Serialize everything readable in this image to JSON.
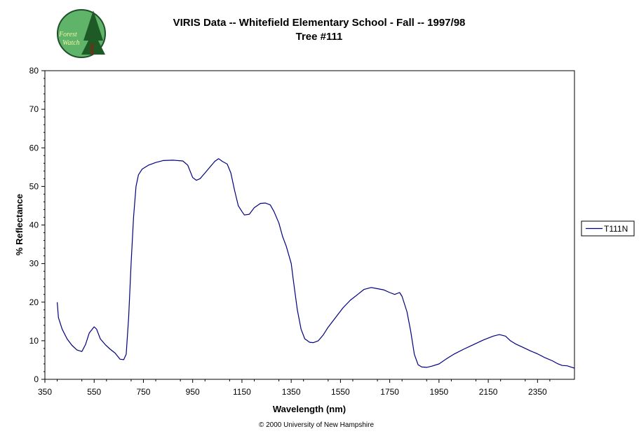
{
  "logo": {
    "name": "forest-watch-logo",
    "text": [
      "Forest",
      "Watch"
    ]
  },
  "copyright": "© 2000 University of New Hampshire",
  "chart_data": {
    "type": "line",
    "title": "VIRIS Data -- Whitefield Elementary School - Fall -- 1997/98",
    "subtitle": "Tree #111",
    "xlabel": "Wavelength (nm)",
    "ylabel": "% Reflectance",
    "xlim": [
      350,
      2500
    ],
    "ylim": [
      0,
      80
    ],
    "x_ticks": [
      350,
      550,
      750,
      950,
      1150,
      1350,
      1550,
      1750,
      1950,
      2150,
      2350
    ],
    "y_ticks": [
      0,
      10,
      20,
      30,
      40,
      50,
      60,
      70,
      80
    ],
    "grid": false,
    "legend_position": "right",
    "series": [
      {
        "name": "T111N",
        "color": "#000080",
        "points": [
          [
            400,
            20
          ],
          [
            405,
            16
          ],
          [
            420,
            13
          ],
          [
            440,
            10.5
          ],
          [
            460,
            8.8
          ],
          [
            480,
            7.6
          ],
          [
            500,
            7.2
          ],
          [
            515,
            9
          ],
          [
            530,
            12
          ],
          [
            550,
            13.6
          ],
          [
            560,
            13
          ],
          [
            575,
            10.5
          ],
          [
            595,
            9
          ],
          [
            615,
            7.8
          ],
          [
            635,
            6.8
          ],
          [
            655,
            5.2
          ],
          [
            670,
            5.1
          ],
          [
            680,
            6.5
          ],
          [
            690,
            16
          ],
          [
            700,
            30
          ],
          [
            710,
            42
          ],
          [
            720,
            50
          ],
          [
            730,
            53
          ],
          [
            745,
            54.5
          ],
          [
            770,
            55.5
          ],
          [
            800,
            56.2
          ],
          [
            830,
            56.7
          ],
          [
            870,
            56.8
          ],
          [
            910,
            56.6
          ],
          [
            930,
            55.5
          ],
          [
            950,
            52.3
          ],
          [
            965,
            51.6
          ],
          [
            980,
            52
          ],
          [
            1000,
            53.5
          ],
          [
            1020,
            55
          ],
          [
            1040,
            56.5
          ],
          [
            1055,
            57.2
          ],
          [
            1070,
            56.5
          ],
          [
            1090,
            55.8
          ],
          [
            1105,
            53.5
          ],
          [
            1120,
            49
          ],
          [
            1135,
            45
          ],
          [
            1150,
            43.5
          ],
          [
            1160,
            42.6
          ],
          [
            1180,
            42.8
          ],
          [
            1200,
            44.5
          ],
          [
            1225,
            45.6
          ],
          [
            1245,
            45.7
          ],
          [
            1265,
            45.2
          ],
          [
            1280,
            43.5
          ],
          [
            1300,
            40.5
          ],
          [
            1315,
            37
          ],
          [
            1330,
            34.5
          ],
          [
            1350,
            30
          ],
          [
            1360,
            25
          ],
          [
            1375,
            18
          ],
          [
            1390,
            13
          ],
          [
            1405,
            10.5
          ],
          [
            1425,
            9.6
          ],
          [
            1440,
            9.5
          ],
          [
            1460,
            10
          ],
          [
            1480,
            11.5
          ],
          [
            1500,
            13.5
          ],
          [
            1530,
            16
          ],
          [
            1560,
            18.5
          ],
          [
            1590,
            20.5
          ],
          [
            1620,
            22
          ],
          [
            1645,
            23.3
          ],
          [
            1675,
            23.8
          ],
          [
            1700,
            23.5
          ],
          [
            1725,
            23.2
          ],
          [
            1750,
            22.5
          ],
          [
            1770,
            22
          ],
          [
            1790,
            22.5
          ],
          [
            1800,
            21.5
          ],
          [
            1820,
            17.5
          ],
          [
            1835,
            12.5
          ],
          [
            1850,
            6.5
          ],
          [
            1865,
            3.8
          ],
          [
            1880,
            3.2
          ],
          [
            1900,
            3.1
          ],
          [
            1920,
            3.4
          ],
          [
            1950,
            4
          ],
          [
            1980,
            5.3
          ],
          [
            2010,
            6.5
          ],
          [
            2050,
            7.8
          ],
          [
            2090,
            9
          ],
          [
            2130,
            10.2
          ],
          [
            2170,
            11.2
          ],
          [
            2195,
            11.6
          ],
          [
            2220,
            11.2
          ],
          [
            2240,
            10
          ],
          [
            2260,
            9.2
          ],
          [
            2290,
            8.3
          ],
          [
            2320,
            7.4
          ],
          [
            2350,
            6.6
          ],
          [
            2380,
            5.6
          ],
          [
            2410,
            4.8
          ],
          [
            2430,
            4.1
          ],
          [
            2450,
            3.6
          ],
          [
            2470,
            3.5
          ],
          [
            2490,
            3.1
          ],
          [
            2500,
            2.9
          ]
        ]
      }
    ]
  }
}
